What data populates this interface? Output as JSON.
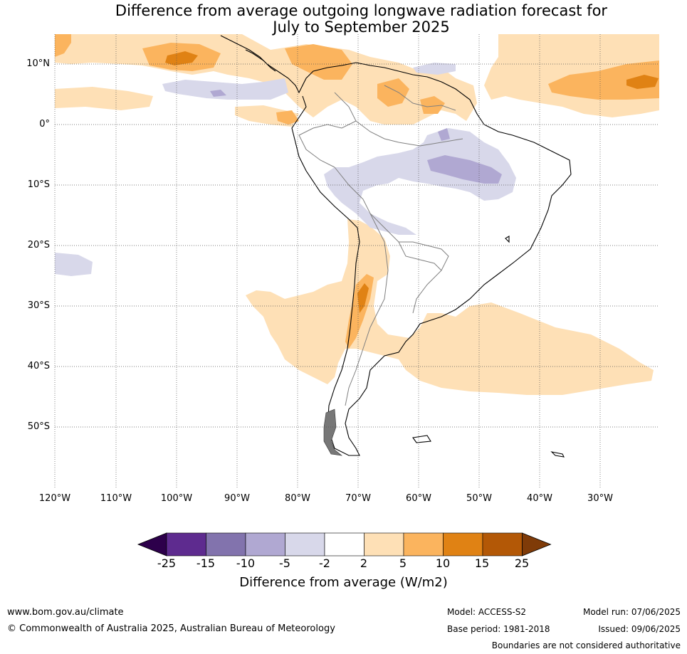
{
  "title_line1": "Difference from average outgoing longwave radiation forecast for",
  "title_line2": "July to September 2025",
  "lat_labels": [
    "10°N",
    "0°",
    "10°S",
    "20°S",
    "30°S",
    "40°S",
    "50°S"
  ],
  "lon_labels": [
    "120°W",
    "110°W",
    "100°W",
    "90°W",
    "80°W",
    "70°W",
    "60°W",
    "50°W",
    "40°W",
    "30°W"
  ],
  "colorbar": {
    "ticks": [
      "-25",
      "-15",
      "-10",
      "-5",
      "-2",
      "2",
      "5",
      "10",
      "15",
      "25"
    ],
    "colors": [
      "#2d004b",
      "#5e2b8f",
      "#8273ad",
      "#b0a8d2",
      "#d8d8ea",
      "#ffffff",
      "#fee0b6",
      "#fbb45e",
      "#e08214",
      "#b35806",
      "#7f3b08"
    ],
    "label": "Difference from average (W/m2)"
  },
  "footer": {
    "url": "www.bom.gov.au/climate",
    "copyright": "© Commonwealth of Australia 2025, Australian Bureau of Meteorology",
    "model": "Model: ACCESS-S2",
    "base_period": "Base period: 1981-2018",
    "model_run": "Model run: 07/06/2025",
    "issued": "Issued: 09/06/2025",
    "disclaimer": "Boundaries are not considered authoritative"
  }
}
